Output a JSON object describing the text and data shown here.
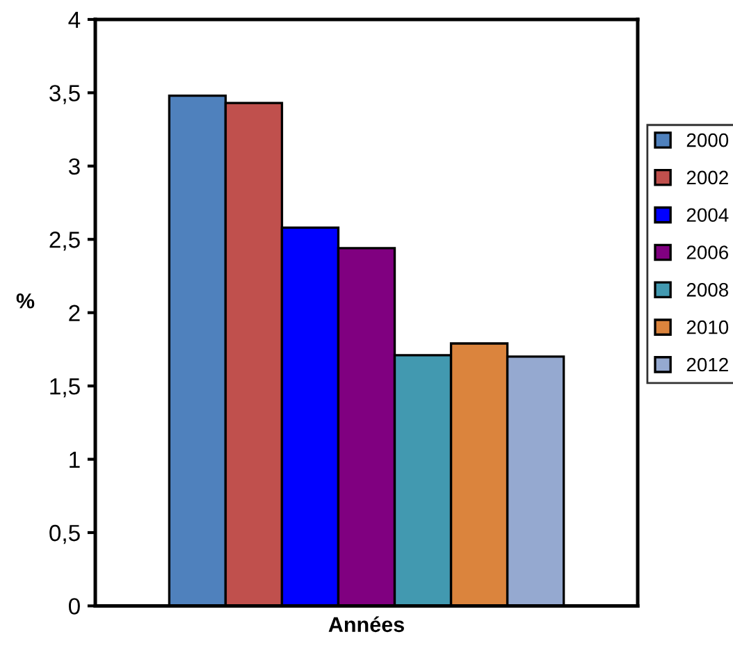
{
  "chart_data": {
    "type": "bar",
    "xlabel": "Années",
    "ylabel": "%",
    "categories": [
      null
    ],
    "series": [
      {
        "name": "2000",
        "color": "#4f81bd",
        "values": [
          3.48
        ]
      },
      {
        "name": "2002",
        "color": "#c0504d",
        "values": [
          3.43
        ]
      },
      {
        "name": "2004",
        "color": "#0000ff",
        "values": [
          2.58
        ]
      },
      {
        "name": "2006",
        "color": "#800080",
        "values": [
          2.44
        ]
      },
      {
        "name": "2008",
        "color": "#4299b0",
        "values": [
          1.71
        ]
      },
      {
        "name": "2010",
        "color": "#db843d",
        "values": [
          1.79
        ]
      },
      {
        "name": "2012",
        "color": "#95a9d0",
        "values": [
          1.7
        ]
      }
    ],
    "ylim": [
      0,
      4
    ],
    "yticks": [
      {
        "value": 0,
        "label": "0"
      },
      {
        "value": 0.5,
        "label": "0,5"
      },
      {
        "value": 1,
        "label": "1"
      },
      {
        "value": 1.5,
        "label": "1,5"
      },
      {
        "value": 2,
        "label": "2"
      },
      {
        "value": 2.5,
        "label": "2,5"
      },
      {
        "value": 3,
        "label": "3"
      },
      {
        "value": 3.5,
        "label": "3,5"
      },
      {
        "value": 4,
        "label": "4"
      }
    ],
    "grid": false,
    "legend": "right"
  }
}
